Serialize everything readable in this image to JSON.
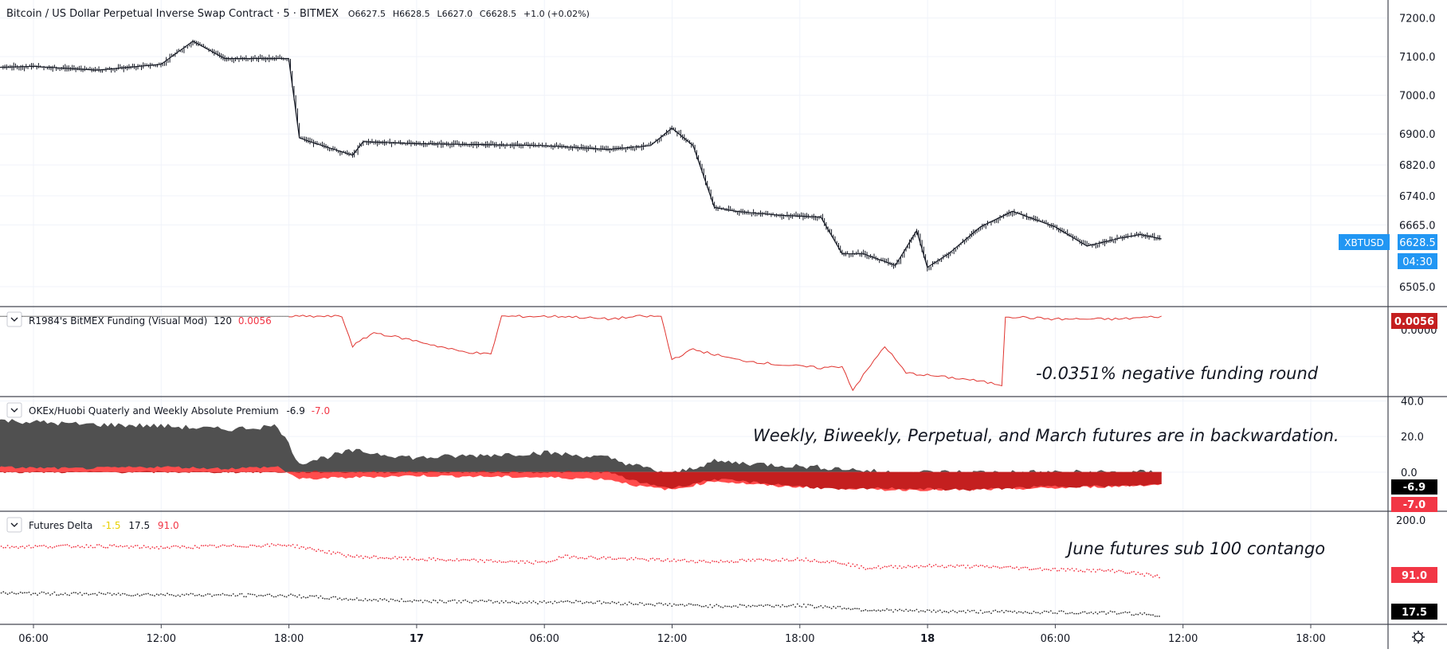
{
  "header": {
    "symbol_title": "Bitcoin / US Dollar Perpetual Inverse Swap Contract · 5 · BITMEX",
    "ohlc_open": "O6627.5",
    "ohlc_high": "H6628.5",
    "ohlc_low": "L6627.0",
    "ohlc_close": "C6628.5",
    "ohlc_change": "+1.0 (+0.02%)"
  },
  "colors": {
    "candles": "#131722",
    "funding_line": "#e0342f",
    "premium_positive": "#505050",
    "premium_negative_dark": "#c41f1f",
    "premium_negative_light": "#ff4c4c",
    "delta_red": "#f23645",
    "delta_black": "#333333",
    "price_badge": "#2196f3",
    "grid": "#f0f3fa",
    "separator": "#434651"
  },
  "price_tag": {
    "symbol": "XBTUSD",
    "price": "6628.5",
    "countdown": "04:30"
  },
  "indicators": {
    "funding": {
      "name": "R1984's BitMEX Funding (Visual Mod)",
      "param": "120",
      "value": "0.0056",
      "axis_partial": "0.0000",
      "annotation": "-0.0351% negative funding round"
    },
    "premium": {
      "name": "OKEx/Huobi Quaterly and Weekly Absolute Premium",
      "value_black": "-6.9",
      "value_red": "-7.0",
      "annotation": "Weekly, Biweekly, Perpetual, and March futures are in backwardation."
    },
    "delta": {
      "name": "Futures Delta",
      "value_yellow": "-1.5",
      "value_black": "17.5",
      "value_red": "91.0",
      "annotation": "June futures sub 100 contango"
    }
  },
  "time_axis": {
    "labels": [
      "06:00",
      "12:00",
      "18:00",
      "17",
      "06:00",
      "12:00",
      "18:00",
      "18",
      "06:00",
      "12:00",
      "18:00"
    ]
  },
  "chart_data": [
    {
      "type": "line",
      "description_series": "XBTUSD 5m price (close, approx.)",
      "x": [
        "16 03:00",
        "16 06:00",
        "16 09:00",
        "16 12:00",
        "16 13:30",
        "16 15:00",
        "16 18:00",
        "16 18:30",
        "16 19:00",
        "16 21:00",
        "16 21:30",
        "17 00:00",
        "17 06:00",
        "17 09:00",
        "17 11:00",
        "17 12:00",
        "17 13:00",
        "17 14:00",
        "17 15:00",
        "17 17:00",
        "17 19:00",
        "17 20:00",
        "17 21:00",
        "17 22:30",
        "17 23:30",
        "18 00:00",
        "18 01:00",
        "18 02:30",
        "18 04:00",
        "18 06:00",
        "18 07:30",
        "18 09:00",
        "18 10:00",
        "18 11:00"
      ],
      "y": [
        7070,
        7075,
        7065,
        7080,
        7140,
        7095,
        7095,
        6890,
        6880,
        6845,
        6880,
        6875,
        6870,
        6860,
        6870,
        6915,
        6870,
        6710,
        6700,
        6690,
        6685,
        6590,
        6590,
        6560,
        6650,
        6555,
        6590,
        6660,
        6700,
        6660,
        6610,
        6630,
        6640,
        6628.5
      ],
      "y_ticks": [
        7200.0,
        7100.0,
        7000.0,
        6900.0,
        6820.0,
        6740.0,
        6665.0,
        6505.0
      ],
      "ylim": [
        6470,
        7230
      ]
    },
    {
      "type": "line",
      "description_series": "BitMEX funding (visual mod)",
      "x": [
        "16 18:00",
        "16 20:30",
        "16 21:00",
        "16 22:00",
        "17 00:00",
        "17 02:00",
        "17 03:30",
        "17 04:00",
        "17 07:00",
        "17 09:00",
        "17 10:30",
        "17 11:30",
        "17 12:00",
        "17 13:00",
        "17 15:00",
        "17 17:00",
        "17 19:00",
        "17 20:00",
        "17 20:30",
        "17 22:00",
        "17 23:00",
        "18 02:00",
        "18 03:30",
        "18 03:40",
        "18 06:00",
        "18 09:00",
        "18 11:00"
      ],
      "y": [
        0.0056,
        0.0056,
        -0.012,
        -0.004,
        -0.009,
        -0.015,
        -0.017,
        0.0056,
        0.0056,
        0.004,
        0.0056,
        0.0056,
        -0.02,
        -0.014,
        -0.02,
        -0.023,
        -0.025,
        -0.024,
        -0.038,
        -0.012,
        -0.028,
        -0.032,
        -0.0351,
        0.0056,
        0.004,
        0.004,
        0.0056
      ],
      "axis_ticks": [
        0.0
      ]
    },
    {
      "type": "area",
      "description_series": "OKEx/Huobi absolute premium",
      "x": [
        "16 03:00",
        "16 08:00",
        "16 12:00",
        "16 15:00",
        "16 17:30",
        "16 18:30",
        "16 21:00",
        "16 24:00",
        "17 06:00",
        "17 09:00",
        "17 10:30",
        "17 12:00",
        "17 14:00",
        "17 17:00",
        "17 20:00",
        "17 22:00",
        "18 02:00",
        "18 06:00",
        "18 09:00",
        "18 11:00"
      ],
      "series": [
        {
          "values": [
            30,
            27,
            26,
            24,
            26,
            5,
            12,
            8,
            11,
            8,
            3,
            -1,
            6,
            4,
            2,
            0,
            0,
            0,
            0,
            0
          ]
        },
        {
          "values": [
            3,
            2,
            3,
            2,
            3,
            -4,
            -3,
            -2,
            -3,
            -4,
            -8,
            -10,
            -5,
            -8,
            -9,
            -10,
            -10,
            -9,
            -8,
            -7
          ]
        },
        {
          "values": [
            0,
            0,
            0,
            0,
            0,
            0,
            0,
            0,
            0,
            0,
            -6,
            -9,
            -4,
            -7,
            -10,
            -9,
            -10,
            -8,
            -8,
            -6.9
          ]
        }
      ],
      "y_ticks": [
        40.0,
        20.0,
        0.0
      ],
      "ylim": [
        -22,
        42
      ]
    },
    {
      "type": "scatter",
      "description_series": "Futures delta",
      "x": [
        "16 03:00",
        "16 09:00",
        "16 12:00",
        "16 18:00",
        "16 21:00",
        "17 00:00",
        "17 06:00",
        "17 07:00",
        "17 10:00",
        "17 14:00",
        "17 18:00",
        "17 20:00",
        "17 21:00",
        "18 00:00",
        "18 03:00",
        "18 06:00",
        "18 09:00",
        "18 11:00"
      ],
      "series": [
        {
          "values": [
            148,
            150,
            147,
            152,
            130,
            125,
            118,
            130,
            125,
            120,
            125,
            118,
            108,
            112,
            110,
            105,
            102,
            91
          ]
        },
        {
          "values": [
            60,
            58,
            57,
            55,
            48,
            45,
            42,
            44,
            40,
            35,
            36,
            32,
            28,
            25,
            24,
            23,
            22,
            17.5
          ]
        }
      ],
      "y_ticks": [
        200.0
      ],
      "ylim": [
        0,
        215
      ]
    }
  ]
}
